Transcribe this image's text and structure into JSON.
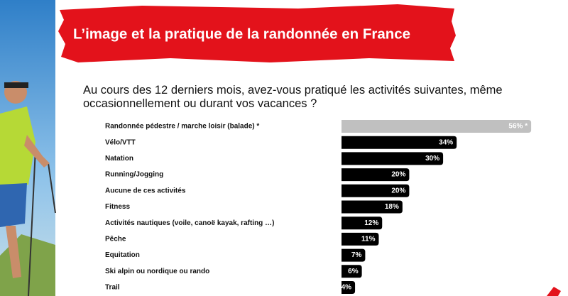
{
  "chart_data": {
    "type": "bar",
    "orientation": "horizontal",
    "title": "L’image et la pratique de la randonnée en France",
    "subtitle": [
      "Au cours des 12 derniers mois, avez-vous pratiqué les activités suivantes, même",
      "occasionnellement ou durant vos vacances ?"
    ],
    "categories": [
      "Randonnée pédestre / marche loisir (balade) *",
      "Vélo/VTT",
      "Natation",
      "Running/Jogging",
      "Aucune de ces activités",
      "Fitness",
      "Activités nautiques (voile, canoë kayak, rafting …)",
      "Pêche",
      "Equitation",
      "Ski alpin ou nordique ou rando",
      "Trail"
    ],
    "values": [
      56,
      34,
      30,
      20,
      20,
      18,
      12,
      11,
      7,
      6,
      4
    ],
    "value_labels": [
      "56% *",
      "34%",
      "30%",
      "20%",
      "20%",
      "18%",
      "12%",
      "11%",
      "7%",
      "6%",
      "4%"
    ],
    "colors": [
      "#c0c0c0",
      "#000000",
      "#000000",
      "#000000",
      "#000000",
      "#000000",
      "#000000",
      "#000000",
      "#000000",
      "#000000",
      "#000000"
    ]
  }
}
